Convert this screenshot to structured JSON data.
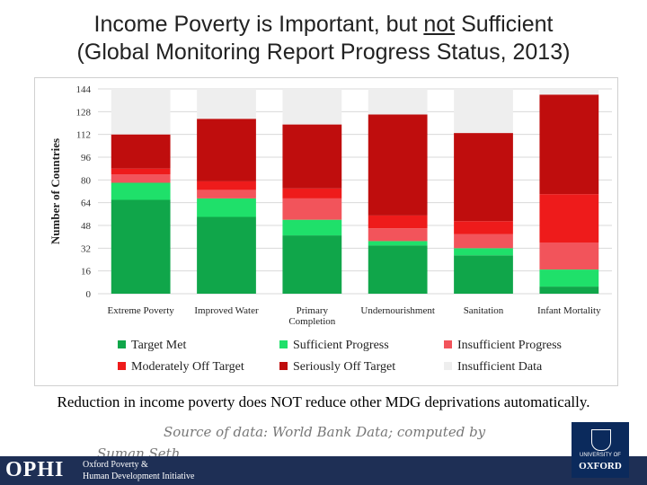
{
  "title": {
    "line1_before": "Income Poverty is Important, but ",
    "line1_underlined": "not",
    "line1_after": " Sufficient",
    "line2": "(Global Monitoring Report Progress Status, 2013)"
  },
  "chart_data": {
    "type": "bar",
    "stacked": true,
    "ylabel": "Number of Countries",
    "ylim": [
      0,
      144
    ],
    "yticks": [
      0,
      16,
      32,
      48,
      64,
      80,
      96,
      112,
      128,
      144
    ],
    "grid": true,
    "legend_position": "bottom",
    "categories": [
      "Extreme Poverty",
      "Improved Water",
      "Primary Completion",
      "Undernourishment",
      "Sanitation",
      "Infant Mortality"
    ],
    "category_labels": [
      [
        "Extreme Poverty"
      ],
      [
        "Improved Water"
      ],
      [
        "Primary",
        "Completion"
      ],
      [
        "Undernourishment"
      ],
      [
        "Sanitation"
      ],
      [
        "Infant Mortality"
      ]
    ],
    "series": [
      {
        "name": "Target Met",
        "color": "#10a64a",
        "values": [
          66,
          54,
          41,
          34,
          27,
          5
        ]
      },
      {
        "name": "Sufficient Progress",
        "color": "#1fe06a",
        "values": [
          12,
          13,
          11,
          3,
          5,
          12
        ]
      },
      {
        "name": "Insufficient Progress",
        "color": "#f2545b",
        "values": [
          6,
          6,
          15,
          9,
          10,
          19
        ]
      },
      {
        "name": "Moderately Off Target",
        "color": "#ee1b1b",
        "values": [
          4,
          6,
          7,
          9,
          9,
          34
        ]
      },
      {
        "name": "Seriously Off Target",
        "color": "#bf0d0d",
        "values": [
          24,
          44,
          45,
          71,
          62,
          70
        ]
      },
      {
        "name": "Insufficient Data",
        "color": "#eeeeee",
        "values": [
          32,
          21,
          25,
          18,
          31,
          4
        ]
      }
    ]
  },
  "caption": "Reduction in income poverty does NOT reduce other MDG deprivations automatically.",
  "source": {
    "line1": "Source of data: World Bank Data; computed by",
    "line2": "Suman Seth"
  },
  "footer": {
    "logo": "OPHI",
    "org_line1": "Oxford Poverty &",
    "org_line2": "Human Development Initiative",
    "university_line1": "UNIVERSITY OF",
    "university_line2": "OXFORD"
  },
  "colors": {
    "footer_bg": "#1e2f55",
    "oxford_blue": "#0b2a5c"
  }
}
